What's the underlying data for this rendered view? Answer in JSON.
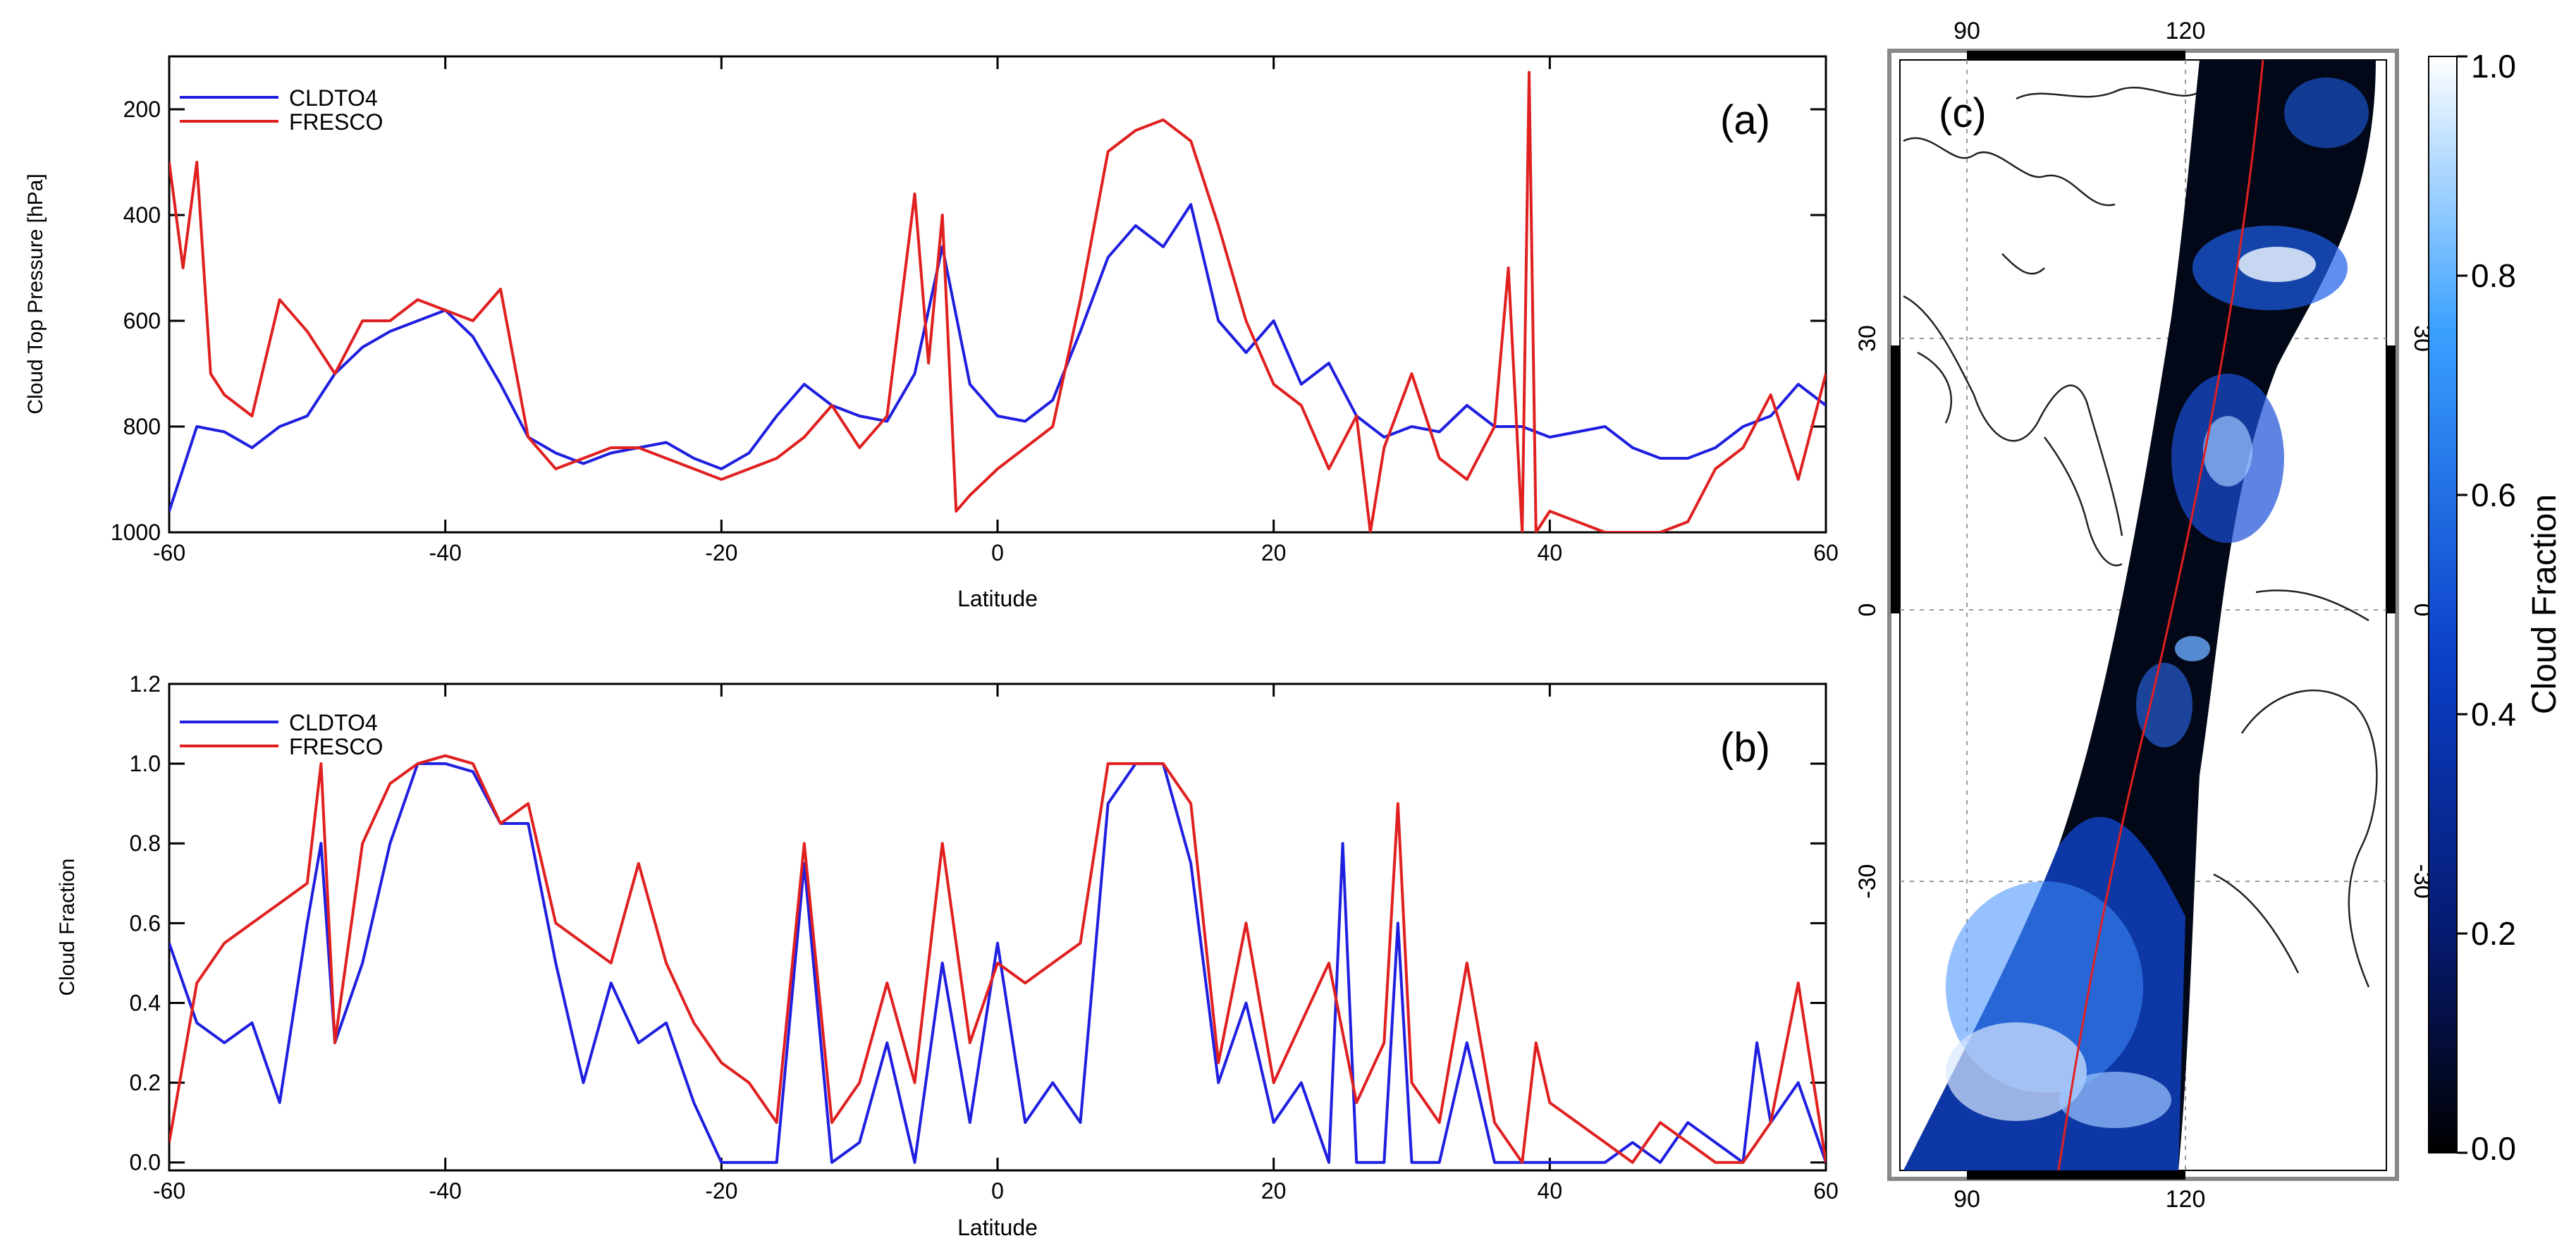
{
  "chart_data": [
    {
      "panel": "(a)",
      "type": "line",
      "xlabel": "Latitude",
      "ylabel": "Cloud Top Pressure [hPa]",
      "xlim": [
        -60,
        60
      ],
      "ylim": [
        1000,
        100
      ],
      "y_inverted": true,
      "xticks": [
        -60,
        -40,
        -20,
        0,
        20,
        40,
        60
      ],
      "yticks": [
        200,
        400,
        600,
        800,
        1000
      ],
      "legend": "top-left",
      "grid": false,
      "colors": {
        "CLDTO4": "#1f1fe0",
        "FRESCO": "#e02020"
      },
      "series": [
        {
          "name": "CLDTO4",
          "x": [
            -60,
            -58,
            -56,
            -54,
            -52,
            -50,
            -48,
            -46,
            -44,
            -42,
            -40,
            -38,
            -36,
            -34,
            -32,
            -30,
            -28,
            -26,
            -24,
            -22,
            -20,
            -18,
            -16,
            -14,
            -12,
            -10,
            -8,
            -6,
            -4,
            -2,
            0,
            2,
            4,
            6,
            8,
            10,
            12,
            14,
            16,
            18,
            20,
            22,
            24,
            26,
            28,
            30,
            32,
            34,
            36,
            38,
            40,
            42,
            44,
            46,
            48,
            50,
            52,
            54,
            56,
            58,
            60
          ],
          "y": [
            960,
            800,
            810,
            840,
            800,
            780,
            700,
            650,
            620,
            600,
            580,
            630,
            720,
            820,
            850,
            870,
            850,
            840,
            830,
            860,
            880,
            850,
            780,
            720,
            760,
            780,
            790,
            700,
            460,
            720,
            780,
            790,
            750,
            620,
            480,
            420,
            460,
            380,
            600,
            660,
            600,
            720,
            680,
            780,
            820,
            800,
            810,
            760,
            800,
            800,
            820,
            810,
            800,
            840,
            860,
            860,
            840,
            800,
            780,
            720,
            760
          ]
        },
        {
          "name": "FRESCO",
          "x": [
            -60,
            -59,
            -58,
            -57,
            -56,
            -54,
            -52,
            -50,
            -48,
            -46,
            -44,
            -42,
            -40,
            -38,
            -36,
            -34,
            -32,
            -30,
            -28,
            -26,
            -24,
            -22,
            -20,
            -18,
            -16,
            -14,
            -12,
            -10,
            -8,
            -6,
            -5,
            -4,
            -3,
            -2,
            0,
            2,
            4,
            6,
            8,
            10,
            12,
            14,
            16,
            18,
            20,
            22,
            24,
            26,
            27,
            28,
            30,
            32,
            34,
            36,
            37,
            38,
            38.5,
            39,
            40,
            42,
            44,
            46,
            48,
            50,
            52,
            54,
            56,
            58,
            60
          ],
          "y": [
            300,
            500,
            300,
            700,
            740,
            780,
            560,
            620,
            700,
            600,
            600,
            560,
            580,
            600,
            540,
            820,
            880,
            860,
            840,
            840,
            860,
            880,
            900,
            880,
            860,
            820,
            760,
            840,
            780,
            360,
            680,
            400,
            960,
            930,
            880,
            840,
            800,
            560,
            280,
            240,
            220,
            260,
            420,
            600,
            720,
            760,
            880,
            780,
            1000,
            840,
            700,
            860,
            900,
            800,
            500,
            1000,
            130,
            1000,
            960,
            980,
            1000,
            1000,
            1000,
            980,
            880,
            840,
            740,
            900,
            700
          ]
        }
      ]
    },
    {
      "panel": "(b)",
      "type": "line",
      "xlabel": "Latitude",
      "ylabel": "Cloud Fraction",
      "xlim": [
        -60,
        60
      ],
      "ylim": [
        -0.02,
        1.2
      ],
      "xticks": [
        -60,
        -40,
        -20,
        0,
        20,
        40,
        60
      ],
      "yticks": [
        0.0,
        0.2,
        0.4,
        0.6,
        0.8,
        1.0,
        1.2
      ],
      "legend": "top-left",
      "grid": false,
      "colors": {
        "CLDTO4": "#1f1fe0",
        "FRESCO": "#e02020"
      },
      "series": [
        {
          "name": "CLDTO4",
          "x": [
            -60,
            -58,
            -56,
            -54,
            -52,
            -50,
            -49,
            -48,
            -46,
            -44,
            -42,
            -40,
            -38,
            -36,
            -34,
            -32,
            -30,
            -28,
            -26,
            -24,
            -22,
            -20,
            -18,
            -16,
            -14,
            -12,
            -10,
            -8,
            -6,
            -4,
            -2,
            0,
            2,
            4,
            6,
            8,
            10,
            12,
            14,
            16,
            18,
            20,
            22,
            24,
            25,
            26,
            28,
            29,
            30,
            32,
            34,
            36,
            38,
            40,
            42,
            44,
            46,
            48,
            50,
            52,
            54,
            55,
            56,
            58,
            60
          ],
          "y": [
            0.55,
            0.35,
            0.3,
            0.35,
            0.15,
            0.6,
            0.8,
            0.3,
            0.5,
            0.8,
            1.0,
            1.0,
            0.98,
            0.85,
            0.85,
            0.5,
            0.2,
            0.45,
            0.3,
            0.35,
            0.15,
            0.0,
            0.0,
            0.0,
            0.75,
            0.0,
            0.05,
            0.3,
            0.0,
            0.5,
            0.1,
            0.55,
            0.1,
            0.2,
            0.1,
            0.9,
            1.0,
            1.0,
            0.75,
            0.2,
            0.4,
            0.1,
            0.2,
            0.0,
            0.8,
            0.0,
            0.0,
            0.6,
            0.0,
            0.0,
            0.3,
            0.0,
            0.0,
            0.0,
            0.0,
            0.0,
            0.05,
            0.0,
            0.1,
            0.05,
            0.0,
            0.3,
            0.1,
            0.2,
            0.0
          ]
        },
        {
          "name": "FRESCO",
          "x": [
            -60,
            -58,
            -56,
            -54,
            -52,
            -50,
            -49,
            -48,
            -46,
            -44,
            -42,
            -40,
            -38,
            -36,
            -34,
            -32,
            -30,
            -28,
            -26,
            -24,
            -22,
            -20,
            -18,
            -16,
            -14,
            -12,
            -10,
            -8,
            -6,
            -4,
            -2,
            0,
            2,
            4,
            6,
            8,
            10,
            12,
            14,
            16,
            18,
            20,
            22,
            24,
            26,
            28,
            29,
            30,
            32,
            34,
            36,
            38,
            39,
            40,
            42,
            44,
            46,
            48,
            50,
            52,
            54,
            56,
            58,
            60
          ],
          "y": [
            0.05,
            0.45,
            0.55,
            0.6,
            0.65,
            0.7,
            1.0,
            0.3,
            0.8,
            0.95,
            1.0,
            1.02,
            1.0,
            0.85,
            0.9,
            0.6,
            0.55,
            0.5,
            0.75,
            0.5,
            0.35,
            0.25,
            0.2,
            0.1,
            0.8,
            0.1,
            0.2,
            0.45,
            0.2,
            0.8,
            0.3,
            0.5,
            0.45,
            0.5,
            0.55,
            1.0,
            1.0,
            1.0,
            0.9,
            0.25,
            0.6,
            0.2,
            0.35,
            0.5,
            0.15,
            0.3,
            0.9,
            0.2,
            0.1,
            0.5,
            0.1,
            0.0,
            0.3,
            0.15,
            0.1,
            0.05,
            0.0,
            0.1,
            0.05,
            0.0,
            0.0,
            0.1,
            0.45,
            0.0
          ]
        }
      ]
    },
    {
      "panel": "(c)",
      "type": "heatmap",
      "colorbar_label": "Cloud Fraction",
      "colorbar_ticks": [
        "1.0",
        "0.8",
        "0.6",
        "0.4",
        "0.2",
        "0.0"
      ],
      "colorbar_range": [
        0.0,
        1.0
      ],
      "colors": {
        "low": "#000000",
        "mid": "#0a3fc8",
        "high": "#ffffff",
        "track": "#e02020"
      },
      "lon_ticks_top": [
        "90",
        "120"
      ],
      "lon_ticks_bottom": [
        "90",
        "120"
      ],
      "lat_ticks_left": [
        "30",
        "0",
        "-30"
      ],
      "lat_ticks_right": [
        "30",
        "0",
        "-30"
      ]
    }
  ]
}
